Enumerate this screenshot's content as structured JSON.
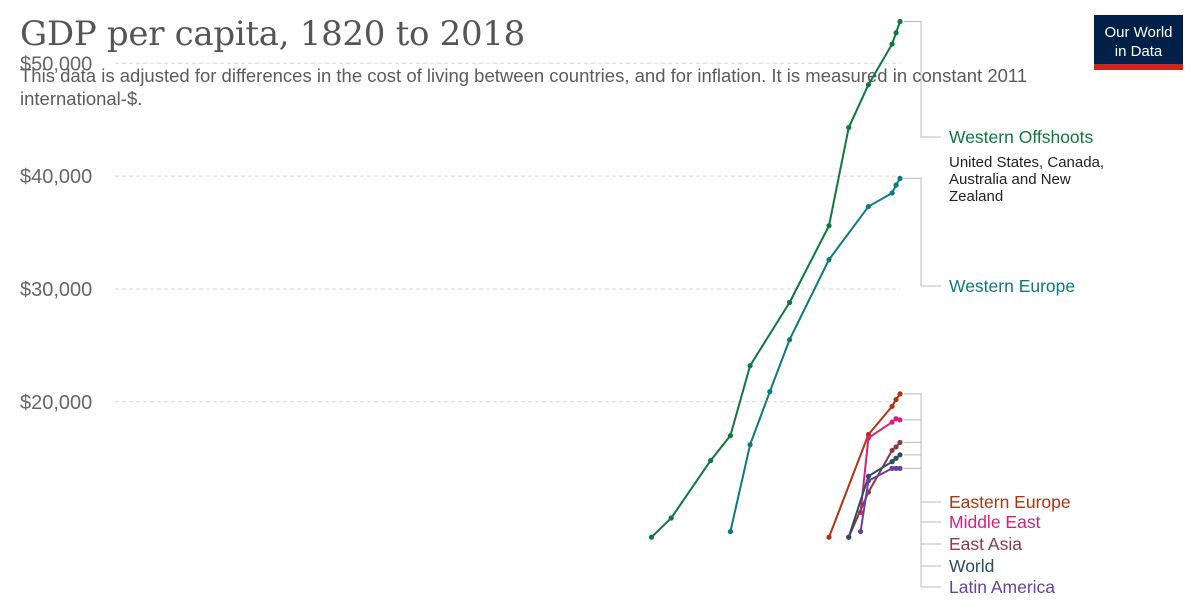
{
  "header": {
    "title": "GDP per capita, 1820 to 2018",
    "subtitle": "This data is adjusted for differences in the cost of living between countries, and for inflation. It is measured in constant 2011 international-$."
  },
  "logo": {
    "line1": "Our World",
    "line2": "in Data"
  },
  "chart_data": {
    "type": "line",
    "title": "GDP per capita, 1820 to 2018",
    "xlabel": "",
    "ylabel": "",
    "yticks": [
      "$20,000",
      "$30,000",
      "$40,000",
      "$50,000"
    ],
    "ytick_values": [
      20000,
      30000,
      40000,
      50000
    ],
    "ylim": [
      8500,
      54500
    ],
    "xlim": [
      1820,
      2018
    ],
    "grid": true,
    "series": [
      {
        "name": "Western Offshoots",
        "note": [
          "United States, Canada,",
          "Australia and New",
          "Zealand"
        ],
        "color": "#0b7a3a",
        "points": [
          [
            1955,
            8000
          ],
          [
            1960,
            9700
          ],
          [
            1970,
            14800
          ],
          [
            1975,
            17000
          ],
          [
            1980,
            23200
          ],
          [
            1990,
            28800
          ],
          [
            2000,
            35600
          ],
          [
            2005,
            44300
          ],
          [
            2010,
            48100
          ],
          [
            2016,
            51700
          ],
          [
            2017,
            52700
          ],
          [
            2018,
            53700
          ]
        ]
      },
      {
        "name": "Western Europe",
        "color": "#0a7a80",
        "points": [
          [
            1975,
            8500
          ],
          [
            1980,
            16200
          ],
          [
            1985,
            20900
          ],
          [
            1990,
            25500
          ],
          [
            2000,
            32600
          ],
          [
            2010,
            37300
          ],
          [
            2016,
            38500
          ],
          [
            2017,
            39200
          ],
          [
            2018,
            39800
          ]
        ]
      },
      {
        "name": "Eastern Europe",
        "color": "#b3330e",
        "points": [
          [
            2000,
            8000
          ],
          [
            2010,
            17100
          ],
          [
            2016,
            19600
          ],
          [
            2017,
            20200
          ],
          [
            2018,
            20700
          ]
        ]
      },
      {
        "name": "Middle East",
        "color": "#d6227b",
        "points": [
          [
            2008,
            10200
          ],
          [
            2010,
            16800
          ],
          [
            2016,
            18200
          ],
          [
            2017,
            18500
          ],
          [
            2018,
            18400
          ]
        ]
      },
      {
        "name": "East Asia",
        "color": "#8f3946",
        "points": [
          [
            2005,
            8000
          ],
          [
            2010,
            12000
          ],
          [
            2016,
            15700
          ],
          [
            2017,
            16000
          ],
          [
            2018,
            16400
          ]
        ]
      },
      {
        "name": "World",
        "color": "#2c4d68",
        "points": [
          [
            2005,
            8000
          ],
          [
            2010,
            13400
          ],
          [
            2016,
            14700
          ],
          [
            2017,
            15000
          ],
          [
            2018,
            15300
          ]
        ]
      },
      {
        "name": "Latin America",
        "color": "#6b3fa0",
        "points": [
          [
            2008,
            8500
          ],
          [
            2010,
            13000
          ],
          [
            2016,
            14100
          ],
          [
            2017,
            14100
          ],
          [
            2018,
            14100
          ]
        ]
      }
    ]
  }
}
